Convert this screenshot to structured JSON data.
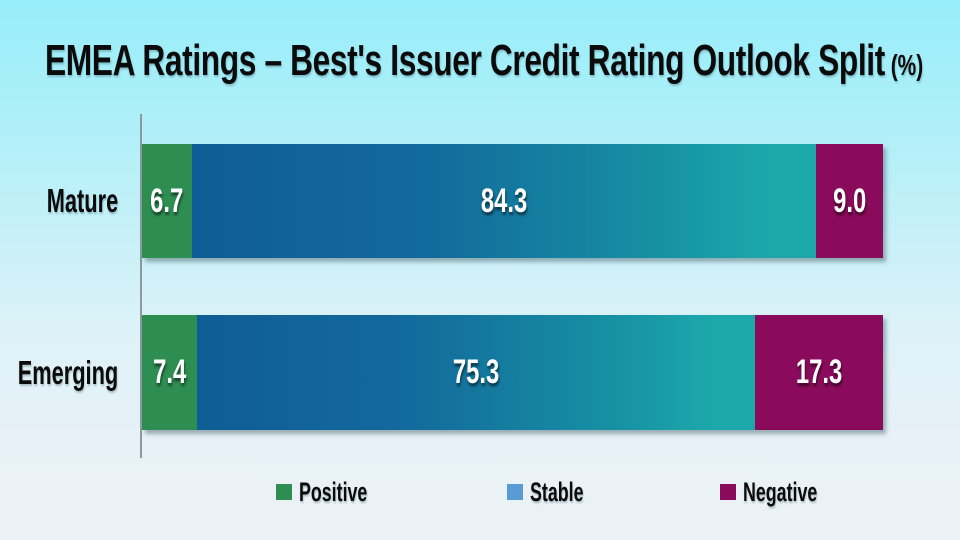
{
  "title": {
    "text": "EMEA Ratings – Best's Issuer Credit Rating Outlook Split",
    "suffix": "(%)"
  },
  "colors": {
    "background_top": "#97eefa",
    "background_bottom": "#ecf3f6",
    "positive": "#2e8e52",
    "stable_gradient_start": "#0f5d96",
    "stable_gradient_end": "#1ca7ab",
    "stable_legend": "#5b9bd5",
    "negative": "#8a0b5b",
    "axis": "#8d999e",
    "value_label_text": "#ffffff",
    "text": "#0b0b0b"
  },
  "chart_data": {
    "type": "bar",
    "orientation": "horizontal-stacked",
    "title": "EMEA Ratings – Best's Issuer Credit Rating Outlook Split (%)",
    "categories": [
      "Mature",
      "Emerging"
    ],
    "series": [
      {
        "name": "Positive",
        "values": [
          6.7,
          7.4
        ]
      },
      {
        "name": "Stable",
        "values": [
          84.3,
          75.3
        ]
      },
      {
        "name": "Negative",
        "values": [
          9.0,
          17.3
        ]
      }
    ],
    "value_labels": [
      [
        "6.7",
        "84.3",
        "9.0"
      ],
      [
        "7.4",
        "75.3",
        "17.3"
      ]
    ],
    "xlim": [
      0,
      100
    ],
    "xlabel": "",
    "ylabel": "",
    "grid": false,
    "legend_position": "bottom"
  },
  "legend": {
    "items": [
      {
        "label": "Positive",
        "color": "#2e8e52"
      },
      {
        "label": "Stable",
        "color": "#5b9bd5"
      },
      {
        "label": "Negative",
        "color": "#8a0b5b"
      }
    ]
  }
}
